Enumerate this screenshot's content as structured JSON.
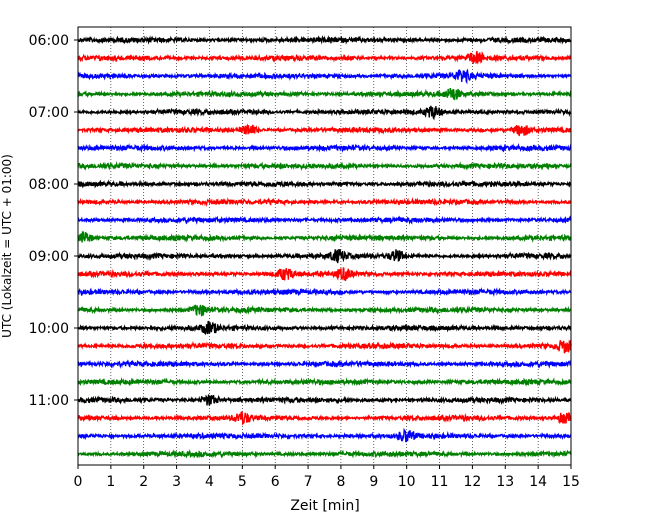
{
  "chart_data": {
    "type": "line",
    "title": "",
    "xlabel": "Zeit  [min]",
    "ylabel": "UTC (Lokalzeit = UTC + 01:00)",
    "xlim": [
      0,
      15
    ],
    "x_ticks": [
      "0",
      "1",
      "2",
      "3",
      "4",
      "5",
      "6",
      "7",
      "8",
      "9",
      "10",
      "11",
      "12",
      "13",
      "14",
      "15"
    ],
    "y_ticks": [
      "06:00",
      "07:00",
      "08:00",
      "09:00",
      "10:00",
      "11:00"
    ],
    "grid": "vertical dotted lines at each minute",
    "traces": [
      {
        "start": "06:00",
        "color": "#000000",
        "events": []
      },
      {
        "start": "06:15",
        "color": "#ff0000",
        "events": [
          12.1
        ]
      },
      {
        "start": "06:30",
        "color": "#0000ff",
        "events": [
          11.7
        ]
      },
      {
        "start": "06:45",
        "color": "#008000",
        "events": [
          11.4
        ]
      },
      {
        "start": "07:00",
        "color": "#000000",
        "events": [
          10.8
        ]
      },
      {
        "start": "07:15",
        "color": "#ff0000",
        "events": [
          5.2,
          13.5
        ]
      },
      {
        "start": "07:30",
        "color": "#0000ff",
        "events": []
      },
      {
        "start": "07:45",
        "color": "#008000",
        "events": []
      },
      {
        "start": "08:00",
        "color": "#000000",
        "events": []
      },
      {
        "start": "08:15",
        "color": "#ff0000",
        "events": []
      },
      {
        "start": "08:30",
        "color": "#0000ff",
        "events": []
      },
      {
        "start": "08:45",
        "color": "#008000",
        "events": [
          0.2
        ]
      },
      {
        "start": "09:00",
        "color": "#000000",
        "events": [
          7.9,
          9.7
        ]
      },
      {
        "start": "09:15",
        "color": "#ff0000",
        "events": [
          6.3,
          8.1
        ]
      },
      {
        "start": "09:30",
        "color": "#0000ff",
        "events": []
      },
      {
        "start": "09:45",
        "color": "#008000",
        "events": [
          3.7
        ]
      },
      {
        "start": "10:00",
        "color": "#000000",
        "events": [
          4.0
        ]
      },
      {
        "start": "10:15",
        "color": "#ff0000",
        "events": [
          14.8
        ]
      },
      {
        "start": "10:30",
        "color": "#0000ff",
        "events": []
      },
      {
        "start": "10:45",
        "color": "#008000",
        "events": []
      },
      {
        "start": "11:00",
        "color": "#000000",
        "events": [
          4.0
        ]
      },
      {
        "start": "11:15",
        "color": "#ff0000",
        "events": [
          5.0,
          14.8
        ]
      },
      {
        "start": "11:30",
        "color": "#0000ff",
        "events": [
          10.0
        ]
      },
      {
        "start": "11:45",
        "color": "#008000",
        "events": []
      }
    ]
  }
}
